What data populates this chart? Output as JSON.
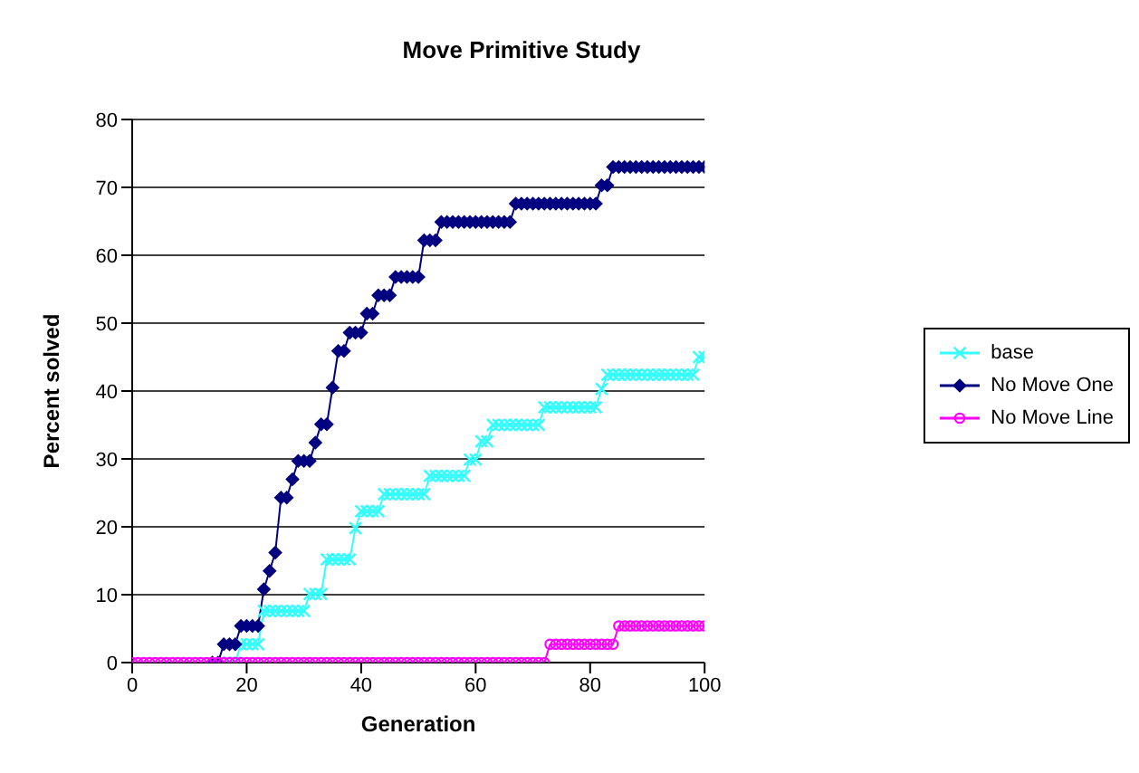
{
  "chart_data": {
    "type": "line",
    "title": "Move Primitive Study",
    "xlabel": "Generation",
    "ylabel": "Percent solved",
    "x": [
      0,
      1,
      2,
      3,
      4,
      5,
      6,
      7,
      8,
      9,
      10,
      11,
      12,
      13,
      14,
      15,
      16,
      17,
      18,
      19,
      20,
      21,
      22,
      23,
      24,
      25,
      26,
      27,
      28,
      29,
      30,
      31,
      32,
      33,
      34,
      35,
      36,
      37,
      38,
      39,
      40,
      41,
      42,
      43,
      44,
      45,
      46,
      47,
      48,
      49,
      50,
      51,
      52,
      53,
      54,
      55,
      56,
      57,
      58,
      59,
      60,
      61,
      62,
      63,
      64,
      65,
      66,
      67,
      68,
      69,
      70,
      71,
      72,
      73,
      74,
      75,
      76,
      77,
      78,
      79,
      80,
      81,
      82,
      83,
      84,
      85,
      86,
      87,
      88,
      89,
      90,
      91,
      92,
      93,
      94,
      95,
      96,
      97,
      98,
      99,
      100
    ],
    "xlim": [
      0,
      100
    ],
    "xticks": [
      0,
      20,
      40,
      60,
      80,
      100
    ],
    "ylim": [
      0,
      80
    ],
    "yticks": [
      0,
      10,
      20,
      30,
      40,
      50,
      60,
      70,
      80
    ],
    "grid": "y",
    "legend": "right",
    "series": [
      {
        "name": "base",
        "color": "#33ffff",
        "marker": "cross",
        "values": [
          null,
          null,
          null,
          null,
          null,
          null,
          null,
          null,
          null,
          null,
          null,
          null,
          null,
          null,
          null,
          null,
          null,
          0,
          0,
          2.7,
          2.7,
          2.7,
          2.7,
          7.6,
          7.6,
          7.6,
          7.6,
          7.6,
          7.6,
          7.6,
          7.6,
          10.1,
          10.1,
          10.1,
          15.2,
          15.2,
          15.2,
          15.2,
          15.2,
          19.8,
          22.3,
          22.3,
          22.3,
          22.3,
          24.8,
          24.8,
          24.8,
          24.8,
          24.8,
          24.8,
          24.8,
          24.8,
          27.5,
          27.5,
          27.5,
          27.5,
          27.5,
          27.5,
          27.5,
          29.9,
          29.9,
          32.6,
          32.6,
          35,
          35,
          35,
          35,
          35,
          35,
          35,
          35,
          35,
          37.6,
          37.6,
          37.6,
          37.6,
          37.6,
          37.6,
          37.6,
          37.6,
          37.6,
          37.6,
          40.3,
          42.4,
          42.4,
          42.4,
          42.4,
          42.4,
          42.4,
          42.4,
          42.4,
          42.4,
          42.4,
          42.4,
          42.4,
          42.4,
          42.4,
          42.4,
          42.4,
          45,
          45
        ]
      },
      {
        "name": "No Move One",
        "color": "#000080",
        "marker": "diamond",
        "values": [
          null,
          null,
          null,
          null,
          null,
          null,
          null,
          null,
          null,
          null,
          null,
          null,
          null,
          null,
          0,
          0,
          2.7,
          2.7,
          2.7,
          5.4,
          5.4,
          5.4,
          5.4,
          10.8,
          13.5,
          16.2,
          24.3,
          24.3,
          27,
          29.7,
          29.7,
          29.7,
          32.4,
          35.1,
          35.1,
          40.5,
          45.9,
          45.9,
          48.6,
          48.6,
          48.6,
          51.4,
          51.4,
          54.1,
          54.1,
          54.1,
          56.8,
          56.8,
          56.8,
          56.8,
          56.8,
          62.2,
          62.2,
          62.2,
          64.9,
          64.9,
          64.9,
          64.9,
          64.9,
          64.9,
          64.9,
          64.9,
          64.9,
          64.9,
          64.9,
          64.9,
          64.9,
          67.6,
          67.6,
          67.6,
          67.6,
          67.6,
          67.6,
          67.6,
          67.6,
          67.6,
          67.6,
          67.6,
          67.6,
          67.6,
          67.6,
          67.6,
          70.3,
          70.3,
          73,
          73,
          73,
          73,
          73,
          73,
          73,
          73,
          73,
          73,
          73,
          73,
          73,
          73,
          73,
          73,
          73
        ]
      },
      {
        "name": "No Move Line",
        "color": "#ff00ff",
        "marker": "circle",
        "values": [
          0,
          0,
          0,
          0,
          0,
          0,
          0,
          0,
          0,
          0,
          0,
          0,
          0,
          0,
          0,
          0,
          0,
          0,
          0,
          0,
          0,
          0,
          0,
          0,
          0,
          0,
          0,
          0,
          0,
          0,
          0,
          0,
          0,
          0,
          0,
          0,
          0,
          0,
          0,
          0,
          0,
          0,
          0,
          0,
          0,
          0,
          0,
          0,
          0,
          0,
          0,
          0,
          0,
          0,
          0,
          0,
          0,
          0,
          0,
          0,
          0,
          0,
          0,
          0,
          0,
          0,
          0,
          0,
          0,
          0,
          0,
          0,
          0,
          2.7,
          2.7,
          2.7,
          2.7,
          2.7,
          2.7,
          2.7,
          2.7,
          2.7,
          2.7,
          2.7,
          2.7,
          5.4,
          5.4,
          5.4,
          5.4,
          5.4,
          5.4,
          5.4,
          5.4,
          5.4,
          5.4,
          5.4,
          5.4,
          5.4,
          5.4,
          5.4,
          5.4
        ]
      }
    ]
  }
}
